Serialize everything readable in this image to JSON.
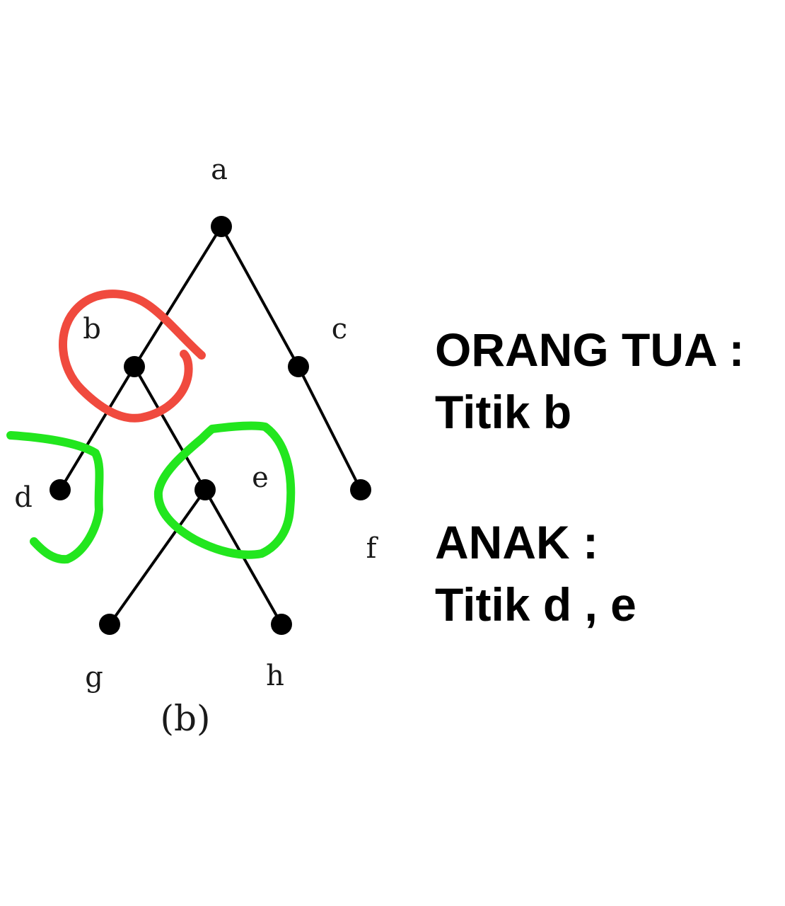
{
  "tree": {
    "nodes": [
      {
        "id": "a",
        "label": "a"
      },
      {
        "id": "b",
        "label": "b"
      },
      {
        "id": "c",
        "label": "c"
      },
      {
        "id": "d",
        "label": "d"
      },
      {
        "id": "e",
        "label": "e"
      },
      {
        "id": "f",
        "label": "f"
      },
      {
        "id": "g",
        "label": "g"
      },
      {
        "id": "h",
        "label": "h"
      }
    ],
    "edges": [
      [
        "a",
        "b"
      ],
      [
        "a",
        "c"
      ],
      [
        "b",
        "d"
      ],
      [
        "b",
        "e"
      ],
      [
        "c",
        "f"
      ],
      [
        "e",
        "g"
      ],
      [
        "e",
        "h"
      ]
    ],
    "caption": "(b)"
  },
  "annotations": {
    "parent_color": "#f04a3e",
    "children_color": "#22e61e"
  },
  "answer": {
    "parent_heading": "ORANG TUA :",
    "parent_value": "Titik b",
    "children_heading": "ANAK :",
    "children_value": "Titik d , e"
  }
}
